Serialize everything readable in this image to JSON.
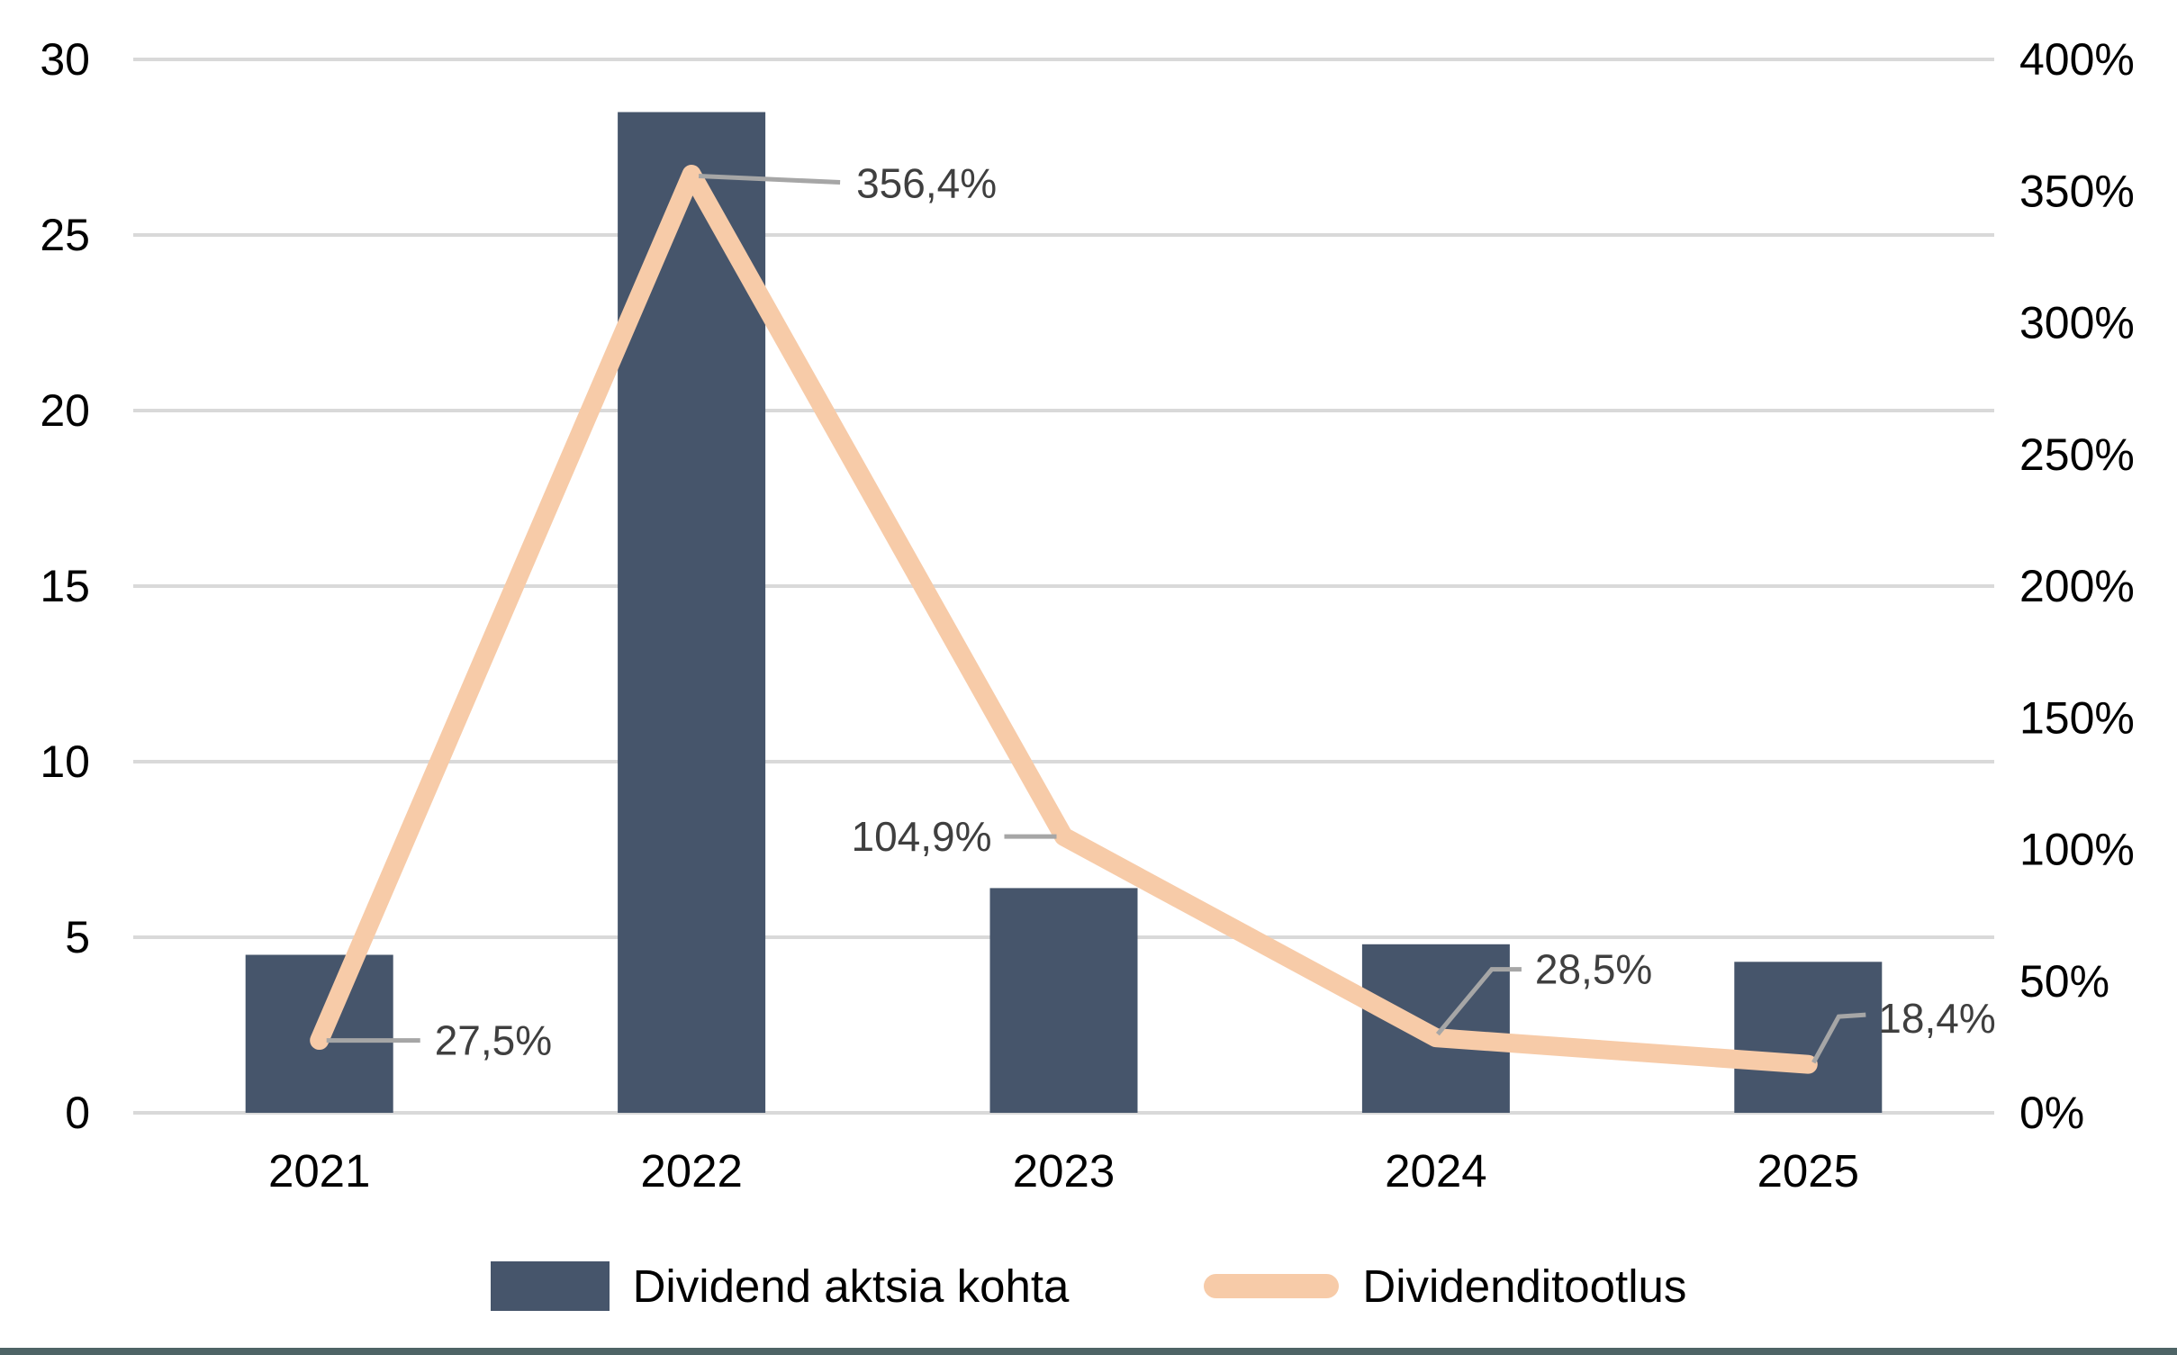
{
  "chart_data": {
    "type": "combo",
    "categories": [
      "2021",
      "2022",
      "2023",
      "2024",
      "2025"
    ],
    "series": [
      {
        "name": "Dividend aktsia kohta",
        "type": "bar",
        "axis": "left",
        "color": "#46556B",
        "values": [
          4.5,
          28.5,
          6.4,
          4.8,
          4.3
        ]
      },
      {
        "name": "Dividenditootlus",
        "type": "line",
        "axis": "right",
        "color": "#F7CBA8",
        "values": [
          27.5,
          356.4,
          104.9,
          28.5,
          18.4
        ]
      }
    ],
    "point_labels": [
      "27,5%",
      "356,4%",
      "104,9%",
      "28,5%",
      "18,4%"
    ],
    "left_axis": {
      "min": 0,
      "max": 30,
      "step": 5,
      "ticks": [
        "0",
        "5",
        "10",
        "15",
        "20",
        "25",
        "30"
      ]
    },
    "right_axis": {
      "min": 0,
      "max": 400,
      "step": 50,
      "ticks": [
        "0%",
        "50%",
        "100%",
        "150%",
        "200%",
        "250%",
        "300%",
        "350%",
        "400%"
      ]
    },
    "grid": true,
    "legend_position": "bottom",
    "title": "",
    "xlabel": "",
    "ylabel": "",
    "colors": {
      "bar": "#46556B",
      "line": "#F7CBA8",
      "grid": "#D9D9D9",
      "leader": "#A6A6A6",
      "point_label_text": "#3F3F3F",
      "axis_text": "#000000",
      "footer_strip": "#4E6466"
    }
  }
}
